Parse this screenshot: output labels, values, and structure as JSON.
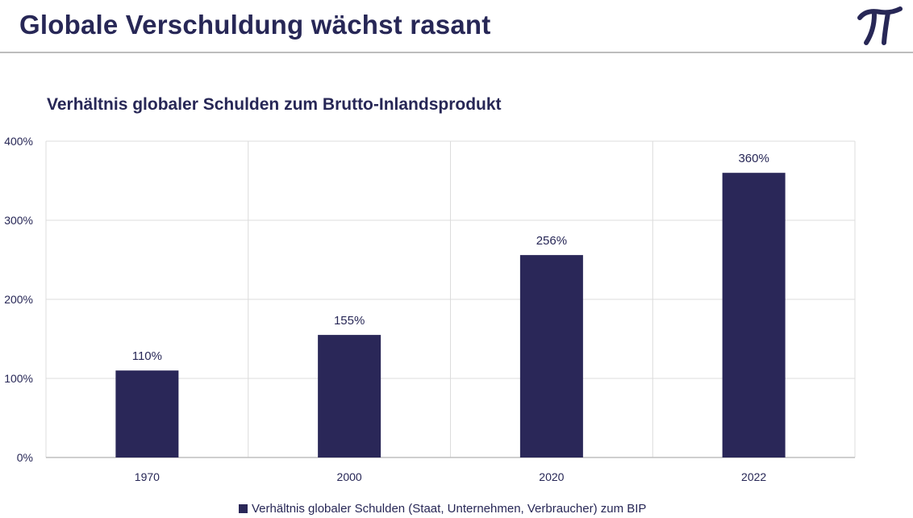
{
  "header": {
    "title": "Globale Verschuldung wächst rasant"
  },
  "logo": {
    "icon": "pi-logo-icon",
    "color": "#272756"
  },
  "chart_data": {
    "type": "bar",
    "title": "Verhältnis globaler Schulden zum Brutto-Inlandsprodukt",
    "categories": [
      "1970",
      "2000",
      "2020",
      "2022"
    ],
    "series": [
      {
        "name": "Verhältnis globaler Schulden (Staat, Unternehmen, Verbraucher) zum BIP",
        "values": [
          110,
          155,
          256,
          360
        ],
        "labels": [
          "110%",
          "155%",
          "256%",
          "360%"
        ],
        "color": "#2a2758"
      }
    ],
    "yticks": [
      0,
      100,
      200,
      300,
      400
    ],
    "ytick_labels": [
      "0%",
      "100%",
      "200%",
      "300%",
      "400%"
    ],
    "ylim": [
      0,
      400
    ],
    "grid": true,
    "legend": "bottom"
  }
}
